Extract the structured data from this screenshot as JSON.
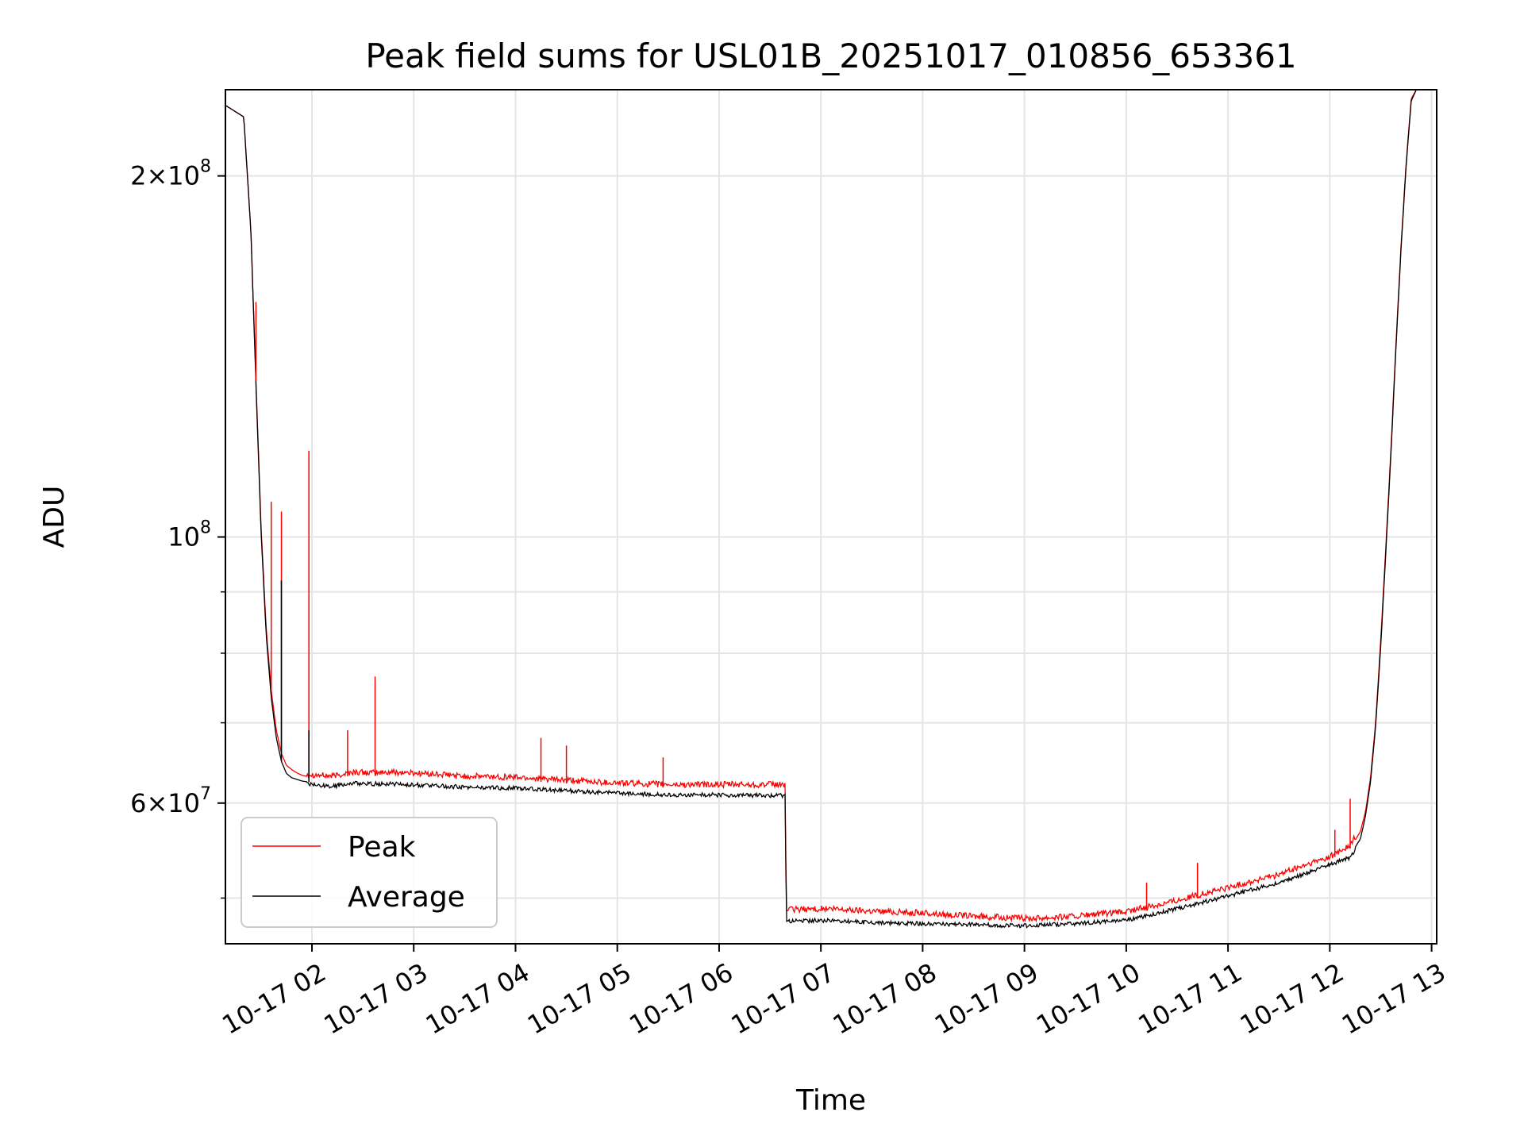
{
  "chart_data": {
    "type": "line",
    "title": "Peak field sums for USL01B_20251017_010856_653361",
    "xlabel": "Time",
    "ylabel": "ADU",
    "yscale": "log",
    "xlim": [
      1.15,
      13.05
    ],
    "ylim": [
      45800000,
      236000000
    ],
    "grid": true,
    "legend": {
      "location": "lower-left",
      "entries": [
        "Peak",
        "Average"
      ]
    },
    "x_ticks": [
      {
        "value": 2,
        "label": "10-17 02"
      },
      {
        "value": 3,
        "label": "10-17 03"
      },
      {
        "value": 4,
        "label": "10-17 04"
      },
      {
        "value": 5,
        "label": "10-17 05"
      },
      {
        "value": 6,
        "label": "10-17 06"
      },
      {
        "value": 7,
        "label": "10-17 07"
      },
      {
        "value": 8,
        "label": "10-17 08"
      },
      {
        "value": 9,
        "label": "10-17 09"
      },
      {
        "value": 10,
        "label": "10-17 10"
      },
      {
        "value": 11,
        "label": "10-17 11"
      },
      {
        "value": 12,
        "label": "10-17 12"
      },
      {
        "value": 13,
        "label": "10-17 13"
      }
    ],
    "y_major_ticks": [
      {
        "value": 60000000,
        "mant": "6",
        "exp": "7"
      },
      {
        "value": 100000000,
        "mant": "",
        "exp": "8"
      },
      {
        "value": 200000000,
        "mant": "2",
        "exp": "8"
      }
    ],
    "y_minor_ticks": [
      50000000,
      70000000,
      80000000,
      90000000
    ],
    "series": [
      {
        "name": "Peak",
        "color": "#ff0000",
        "x": [
          1.15,
          1.33,
          1.4,
          1.45,
          1.5,
          1.55,
          1.6,
          1.65,
          1.7,
          1.75,
          1.8,
          1.85,
          1.9,
          2.0,
          2.2,
          2.4,
          2.6,
          2.8,
          3.0,
          3.5,
          4.0,
          4.5,
          5.0,
          5.5,
          6.0,
          6.65,
          6.66,
          7.0,
          7.5,
          8.0,
          8.5,
          9.0,
          9.5,
          10.0,
          10.5,
          11.0,
          11.5,
          12.0,
          12.2,
          12.3,
          12.35,
          12.4,
          12.45,
          12.5,
          12.55,
          12.6,
          12.65,
          12.7,
          12.75,
          12.8,
          12.85,
          12.9
        ],
        "y": [
          229000000,
          224000000,
          180000000,
          135000000,
          102000000,
          84000000,
          74500000,
          69000000,
          66000000,
          64500000,
          64000000,
          63600000,
          63300000,
          63000000,
          62800000,
          63300000,
          63200000,
          63300000,
          63200000,
          62800000,
          62700000,
          62300000,
          62000000,
          61800000,
          61800000,
          61800000,
          48600000,
          48700000,
          48500000,
          48300000,
          48000000,
          47800000,
          48000000,
          48400000,
          49500000,
          50700000,
          52000000,
          53800000,
          55000000,
          56800000,
          59000000,
          63000000,
          70000000,
          82000000,
          98000000,
          118000000,
          145000000,
          175000000,
          205000000,
          232000000,
          236000000,
          236000000
        ]
      },
      {
        "name": "Average",
        "color": "#000000",
        "x": [
          1.15,
          1.33,
          1.4,
          1.45,
          1.5,
          1.55,
          1.6,
          1.65,
          1.7,
          1.75,
          1.8,
          1.85,
          1.9,
          2.0,
          2.2,
          2.4,
          2.6,
          2.8,
          3.0,
          3.5,
          4.0,
          4.5,
          5.0,
          5.5,
          6.0,
          6.65,
          6.66,
          7.0,
          7.5,
          8.0,
          8.5,
          9.0,
          9.5,
          10.0,
          10.5,
          11.0,
          11.5,
          12.0,
          12.2,
          12.3,
          12.35,
          12.4,
          12.45,
          12.5,
          12.55,
          12.6,
          12.65,
          12.7,
          12.75,
          12.8,
          12.85,
          12.9
        ],
        "y": [
          229000000,
          224000000,
          180000000,
          134000000,
          101000000,
          83000000,
          73500000,
          68000000,
          65000000,
          63500000,
          63000000,
          62800000,
          62600000,
          62400000,
          62200000,
          62600000,
          62500000,
          62500000,
          62400000,
          62100000,
          62000000,
          61700000,
          61400000,
          61200000,
          61200000,
          61100000,
          48000000,
          48100000,
          47900000,
          47800000,
          47700000,
          47600000,
          47800000,
          48100000,
          49200000,
          50400000,
          51700000,
          53500000,
          54300000,
          56000000,
          58500000,
          62500000,
          69500000,
          81000000,
          97000000,
          117000000,
          144000000,
          174000000,
          204000000,
          231000000,
          236000000,
          236000000
        ]
      }
    ],
    "spikes": [
      {
        "series": "Peak",
        "x": 1.45,
        "y": 157000000
      },
      {
        "series": "Peak",
        "x": 1.6,
        "y": 107000000
      },
      {
        "series": "Peak",
        "x": 1.7,
        "y": 105000000
      },
      {
        "series": "Average",
        "x": 1.7,
        "y": 92000000
      },
      {
        "series": "Peak",
        "x": 1.97,
        "y": 118000000
      },
      {
        "series": "Average",
        "x": 1.97,
        "y": 69000000
      },
      {
        "series": "Peak",
        "x": 2.35,
        "y": 69000000
      },
      {
        "series": "Peak",
        "x": 2.62,
        "y": 76500000
      },
      {
        "series": "Peak",
        "x": 4.25,
        "y": 68000000
      },
      {
        "series": "Peak",
        "x": 4.5,
        "y": 67000000
      },
      {
        "series": "Peak",
        "x": 5.45,
        "y": 65500000
      },
      {
        "series": "Peak",
        "x": 10.2,
        "y": 51500000
      },
      {
        "series": "Peak",
        "x": 10.7,
        "y": 53500000
      },
      {
        "series": "Peak",
        "x": 12.05,
        "y": 57000000
      },
      {
        "series": "Peak",
        "x": 12.2,
        "y": 60500000
      }
    ]
  }
}
